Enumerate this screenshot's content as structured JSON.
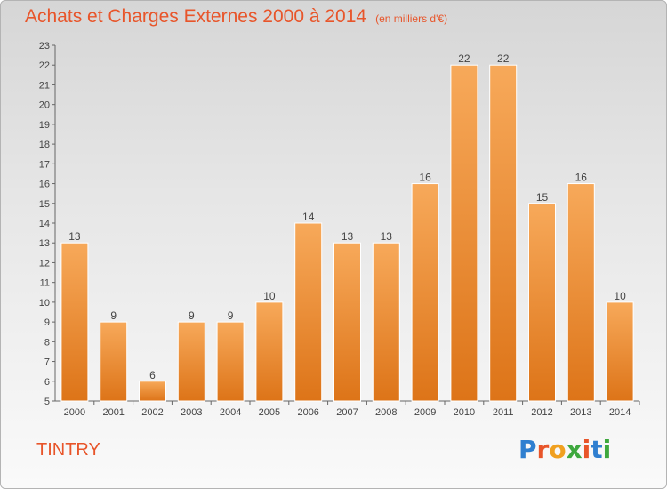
{
  "header": {
    "title": "Achats et Charges Externes 2000 à 2014",
    "subtitle": "(en milliers d'€)"
  },
  "footer": {
    "commune": "TINTRY",
    "logo_text": "Proxiti",
    "logo_colors": [
      "#2f7fd0",
      "#e8552a",
      "#f0a020",
      "#3ea83e",
      "#e8552a",
      "#2f7fd0",
      "#3ea83e"
    ]
  },
  "colors": {
    "title": "#e8552a",
    "bar_light": "#f7a95a",
    "bar_dark": "#e07a20",
    "axis": "#666666"
  },
  "chart_data": {
    "type": "bar",
    "title": "Achats et Charges Externes 2000 à 2014",
    "subtitle": "(en milliers d'€)",
    "categories": [
      "2000",
      "2001",
      "2002",
      "2003",
      "2004",
      "2005",
      "2006",
      "2007",
      "2008",
      "2009",
      "2010",
      "2011",
      "2012",
      "2013",
      "2014"
    ],
    "values": [
      13,
      9,
      6,
      9,
      9,
      10,
      14,
      13,
      13,
      16,
      22,
      22,
      15,
      16,
      10
    ],
    "ylim": [
      5,
      23
    ],
    "yticks": [
      5,
      6,
      7,
      8,
      9,
      10,
      11,
      12,
      13,
      14,
      15,
      16,
      17,
      18,
      19,
      20,
      21,
      22,
      23
    ],
    "grid": false,
    "legend": "none",
    "data_labels": true
  }
}
